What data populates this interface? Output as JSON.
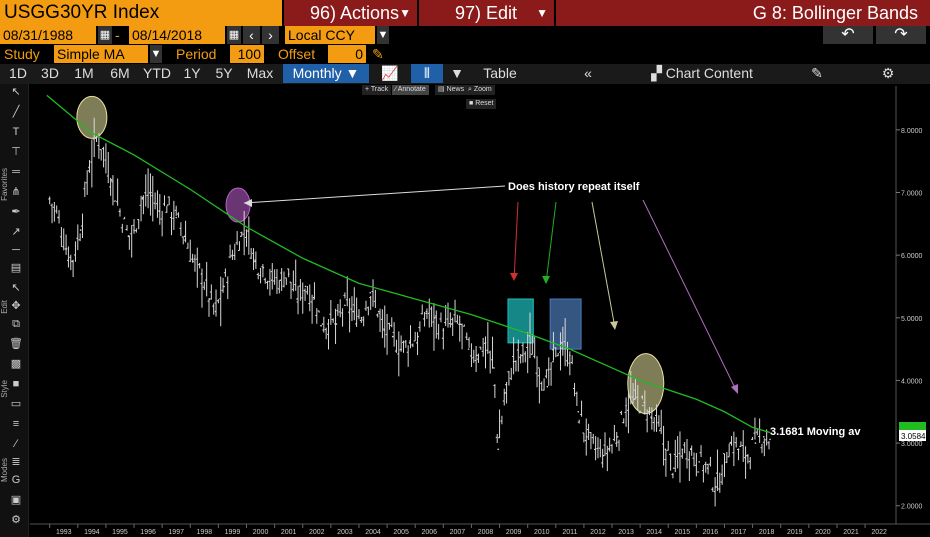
{
  "header": {
    "ticker": "USGG30YR Index",
    "actions_label": "96) Actions",
    "edit_label": "97) Edit",
    "graph_title": "G 8: Bollinger Bands"
  },
  "controls": {
    "start_date": "08/31/1988",
    "date_sep": "-",
    "end_date": "08/14/2018",
    "currency": "Local CCY",
    "study_label": "Study",
    "study_value": "Simple MA",
    "period_label": "Period",
    "period_value": "100",
    "offset_label": "Offset",
    "offset_value": "0"
  },
  "toolbar": {
    "ranges": [
      "1D",
      "3D",
      "1M",
      "6M",
      "YTD",
      "1Y",
      "5Y",
      "Max"
    ],
    "frequency": "Monthly",
    "table_label": "Table",
    "chart_content_label": "Chart Content"
  },
  "chart_tools": {
    "track": "Track",
    "annotate": "Annotate",
    "news": "News",
    "zoom": "Zoom",
    "reset": "Reset"
  },
  "side_labels": {
    "favorites": "Favorites",
    "edit": "Edit",
    "style": "Style",
    "modes": "Modes"
  },
  "colors": {
    "accent": "#f39c12",
    "header_red": "#8b1a1a",
    "ma_line": "#22bb22",
    "price_bars": "#d8d8d8",
    "last_price_badge": "#2ecc40"
  },
  "chart_data": {
    "type": "line",
    "title": "USGG30YR Index",
    "x_ticks": [
      "1993",
      "1994",
      "1995",
      "1996",
      "1997",
      "1998",
      "1999",
      "2000",
      "2001",
      "2002",
      "2003",
      "2004",
      "2005",
      "2006",
      "2007",
      "2008",
      "2009",
      "2010",
      "2011",
      "2012",
      "2013",
      "2014",
      "2015",
      "2016",
      "2017",
      "2018",
      "2019",
      "2020",
      "2021",
      "2022"
    ],
    "y_ticks": [
      "2.0000",
      "3.0000",
      "4.0000",
      "5.0000",
      "6.0000",
      "7.0000",
      "8.0000"
    ],
    "ylim": [
      1.9,
      8.7
    ],
    "price_series": {
      "x": [
        1993.0,
        1993.3,
        1993.6,
        1993.8,
        1994.1,
        1994.4,
        1994.7,
        1994.9,
        1995.2,
        1995.5,
        1995.8,
        1996.0,
        1996.3,
        1996.6,
        1996.9,
        1997.2,
        1997.5,
        1997.8,
        1998.1,
        1998.4,
        1998.7,
        1998.9,
        1999.2,
        1999.5,
        1999.8,
        2000.0,
        2000.3,
        2000.6,
        2000.9,
        2001.2,
        2001.5,
        2001.8,
        2002.1,
        2002.4,
        2002.7,
        2002.9,
        2003.2,
        2003.5,
        2003.8,
        2004.1,
        2004.4,
        2004.7,
        2004.9,
        2005.2,
        2005.5,
        2005.8,
        2006.1,
        2006.4,
        2006.7,
        2007.0,
        2007.3,
        2007.6,
        2007.9,
        2008.2,
        2008.5,
        2008.8,
        2008.95,
        2009.2,
        2009.5,
        2009.8,
        2010.1,
        2010.4,
        2010.7,
        2010.9,
        2011.2,
        2011.5,
        2011.8,
        2012.1,
        2012.4,
        2012.7,
        2012.9,
        2013.2,
        2013.5,
        2013.8,
        2014.1,
        2014.4,
        2014.7,
        2014.9,
        2015.2,
        2015.5,
        2015.8,
        2016.1,
        2016.4,
        2016.7,
        2016.9,
        2017.2,
        2017.5,
        2017.8,
        2018.1,
        2018.4,
        2018.62
      ],
      "y": [
        6.9,
        6.6,
        6.1,
        5.9,
        6.4,
        7.4,
        7.9,
        7.7,
        7.2,
        6.7,
        6.3,
        6.4,
        6.9,
        7.0,
        6.7,
        6.8,
        6.6,
        6.3,
        5.9,
        5.7,
        5.3,
        5.1,
        5.5,
        6.0,
        6.3,
        6.4,
        5.9,
        5.8,
        5.6,
        5.6,
        5.7,
        5.3,
        5.5,
        5.3,
        4.9,
        4.9,
        4.9,
        5.2,
        5.1,
        5.0,
        5.4,
        5.1,
        4.8,
        4.7,
        4.5,
        4.6,
        4.7,
        5.1,
        5.0,
        4.8,
        4.9,
        4.9,
        4.5,
        4.4,
        4.6,
        4.2,
        2.9,
        3.8,
        4.3,
        4.4,
        4.6,
        4.2,
        3.9,
        4.3,
        4.6,
        4.4,
        3.5,
        3.1,
        2.9,
        2.8,
        2.9,
        3.1,
        3.6,
        3.7,
        3.6,
        3.4,
        3.2,
        2.9,
        2.6,
        2.9,
        2.9,
        2.7,
        2.6,
        2.3,
        2.5,
        3.0,
        2.9,
        2.8,
        3.0,
        3.1,
        3.0584
      ]
    },
    "ma_series": {
      "name": "Moving av",
      "x": [
        1992.9,
        1994.5,
        1996.0,
        1998.0,
        2000.0,
        2002.0,
        2004.0,
        2006.0,
        2008.0,
        2010.0,
        2011.5,
        2013.0,
        2014.0,
        2015.0,
        2016.0,
        2017.0,
        2018.0,
        2018.62
      ],
      "y": [
        8.55,
        7.95,
        7.6,
        7.05,
        6.45,
        5.95,
        5.55,
        5.3,
        5.05,
        4.75,
        4.5,
        4.2,
        4.0,
        3.85,
        3.7,
        3.5,
        3.25,
        3.1681
      ]
    },
    "last_price_label": "3.0584",
    "ma_label": "3.1681 Moving av",
    "annotations": {
      "text": "Does history repeat itself",
      "highlights": [
        {
          "shape": "circle",
          "x": 1994.5,
          "y": 8.2,
          "color": "#e8e2a0"
        },
        {
          "shape": "circle",
          "x": 1999.7,
          "y": 6.8,
          "color": "#c060d0"
        },
        {
          "shape": "rect",
          "x0": 2009.3,
          "x1": 2010.2,
          "y0": 4.6,
          "y1": 5.3,
          "color": "#20c0c0"
        },
        {
          "shape": "rect",
          "x0": 2010.8,
          "x1": 2011.9,
          "y0": 4.5,
          "y1": 5.3,
          "color": "#4a7ab8"
        },
        {
          "shape": "circle",
          "x": 2014.2,
          "y": 3.95,
          "color": "#e8e2a0"
        }
      ]
    }
  }
}
